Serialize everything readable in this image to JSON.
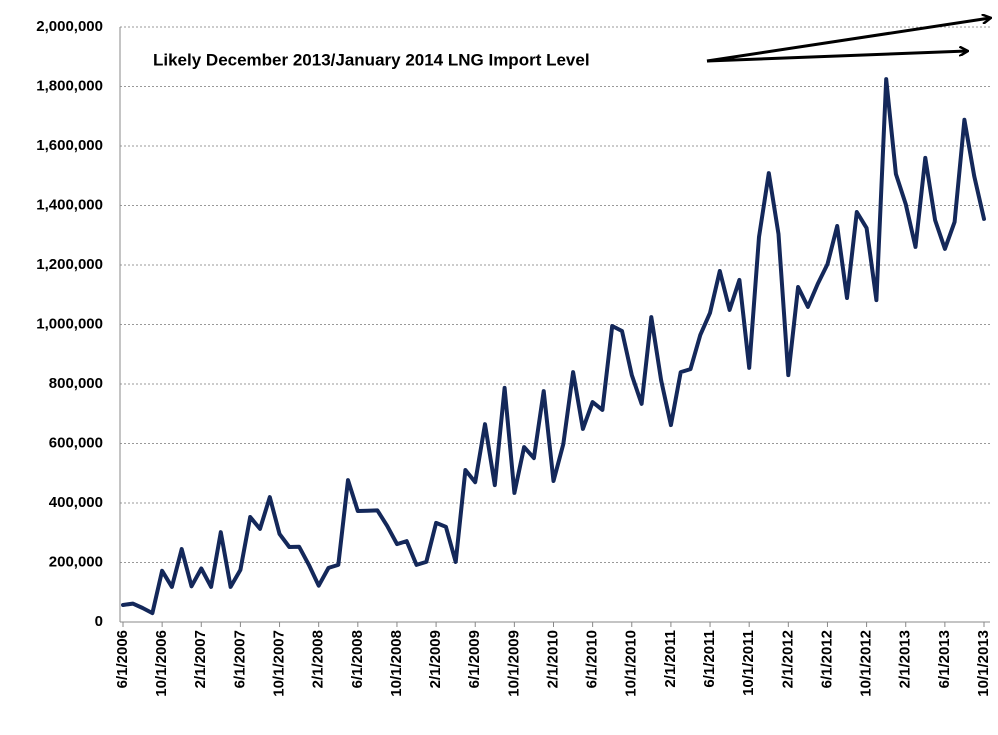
{
  "chart_data": {
    "type": "line",
    "annotation": "Likely December 2013/January  2014 LNG Import Level",
    "categories": [
      "6/1/2006",
      null,
      null,
      null,
      "10/1/2006",
      null,
      null,
      null,
      "2/1/2007",
      null,
      null,
      null,
      "6/1/2007",
      null,
      null,
      null,
      "10/1/2007",
      null,
      null,
      null,
      "2/1/2008",
      null,
      null,
      null,
      "6/1/2008",
      null,
      null,
      null,
      "10/1/2008",
      null,
      null,
      null,
      "2/1/2009",
      null,
      null,
      null,
      "6/1/2009",
      null,
      null,
      null,
      "10/1/2009",
      null,
      null,
      null,
      "2/1/2010",
      null,
      null,
      null,
      "6/1/2010",
      null,
      null,
      null,
      "10/1/2010",
      null,
      null,
      null,
      "2/1/2011",
      null,
      null,
      null,
      "6/1/2011",
      null,
      null,
      null,
      "10/1/2011",
      null,
      null,
      null,
      "2/1/2012",
      null,
      null,
      null,
      "6/1/2012",
      null,
      null,
      null,
      "10/1/2012",
      null,
      null,
      null,
      "2/1/2013",
      null,
      null,
      null,
      "6/1/2013",
      null,
      null,
      null,
      "10/1/2013"
    ],
    "series": [
      {
        "color": "#14285a",
        "values": [
          57000,
          62000,
          47000,
          30000,
          172000,
          118000,
          245000,
          120000,
          180000,
          118000,
          302000,
          118000,
          175000,
          353000,
          313000,
          420000,
          296000,
          252000,
          253000,
          192000,
          122000,
          182000,
          192000,
          477000,
          373000,
          374000,
          375000,
          323000,
          262000,
          272000,
          192000,
          202000,
          333000,
          320000,
          202000,
          511000,
          470000,
          665000,
          460000,
          787000,
          434000,
          588000,
          551000,
          776000,
          474000,
          598000,
          840000,
          649000,
          739000,
          713000,
          995000,
          978000,
          830000,
          733000,
          1025000,
          813000,
          662000,
          840000,
          850000,
          965000,
          1039000,
          1180000,
          1049000,
          1150000,
          854000,
          1294000,
          1509000,
          1304000,
          830000,
          1126000,
          1059000,
          1136000,
          1203000,
          1331000,
          1089000,
          1378000,
          1324000,
          1082000,
          1825000,
          1506000,
          1405000,
          1261000,
          1560000,
          1351000,
          1254000,
          1345000,
          1688000,
          1499000,
          1355000
        ]
      }
    ],
    "ylim": [
      0,
      2000000
    ],
    "yticks": [
      0,
      {
        "value": 200000,
        "label": "200,000"
      },
      {
        "value": 400000,
        "label": "400,000"
      },
      {
        "value": 600000,
        "label": "600,000"
      },
      {
        "value": 800000,
        "label": "800,000"
      },
      {
        "value": 1000000,
        "label": "1,000,000"
      },
      {
        "value": 1200000,
        "label": "1,200,000"
      },
      {
        "value": 1400000,
        "label": "1,400,000"
      },
      {
        "value": 1600000,
        "label": "1,600,000"
      },
      {
        "value": 1800000,
        "label": "1,800,000"
      },
      {
        "value": 2000000,
        "label": "2,000,000"
      }
    ],
    "grid": true
  }
}
